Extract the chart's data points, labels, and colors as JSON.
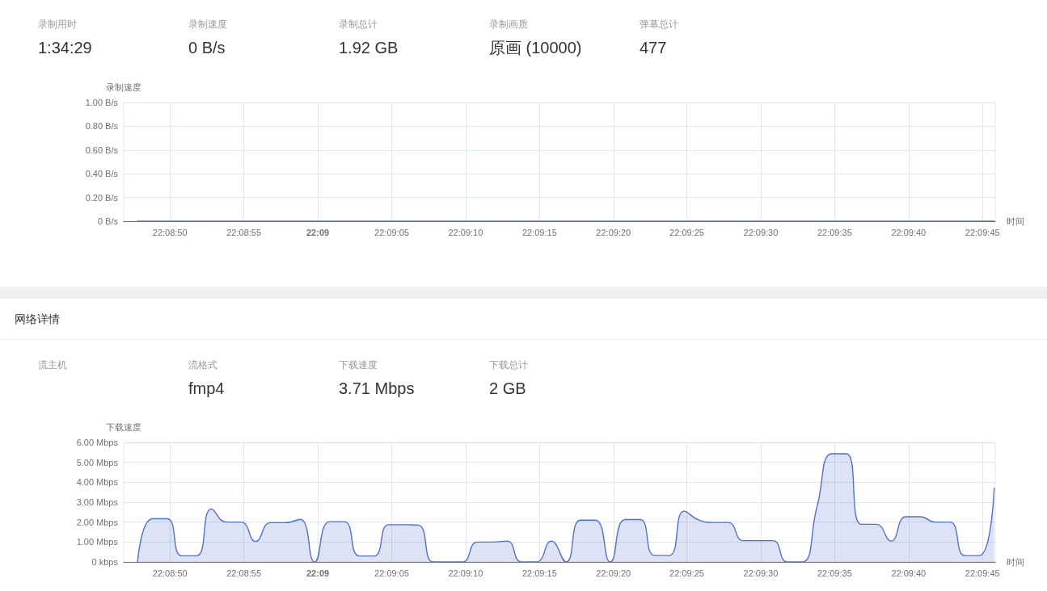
{
  "chart_data": [
    {
      "type": "other",
      "categories": [
        "录制用时",
        "录制速度",
        "录制总计",
        "录制画质",
        "弹幕总计"
      ],
      "value_labels": [
        "1:34:29",
        "0 B/s",
        "1.92 GB",
        "原画 (10000)",
        "477"
      ]
    },
    {
      "type": "line",
      "ylabel": "录制速度",
      "xlabel": "时间",
      "color": "#5470c6",
      "grid": true,
      "x": [
        22.14661,
        22.14689,
        22.14717,
        22.14744,
        22.14772,
        22.148,
        22.14828,
        22.14856,
        22.14883,
        22.14911,
        22.14939,
        22.14967,
        22.14994,
        22.15022,
        22.1505,
        22.15078,
        22.15106,
        22.15133,
        22.15161,
        22.15189,
        22.15217,
        22.15244,
        22.15272,
        22.153,
        22.15328,
        22.15356,
        22.15383,
        22.15411,
        22.15439,
        22.15467,
        22.15494,
        22.15522,
        22.1555,
        22.15578,
        22.15606,
        22.15633,
        22.15661,
        22.15689,
        22.15717,
        22.15744,
        22.15772,
        22.158,
        22.15828,
        22.15856,
        22.15883,
        22.15911,
        22.15939,
        22.15967,
        22.15994,
        22.16022,
        22.1605,
        22.16078,
        22.16106,
        22.16133,
        22.16161,
        22.16189,
        22.16217,
        22.16244,
        22.16272
      ],
      "values": [
        0,
        0,
        0,
        0,
        0,
        0,
        0,
        0,
        0,
        0,
        0,
        0,
        0,
        0,
        0,
        0,
        0,
        0,
        0,
        0,
        0,
        0,
        0,
        0,
        0,
        0,
        0,
        0,
        0,
        0,
        0,
        0,
        0,
        0,
        0,
        0,
        0,
        0,
        0,
        0,
        0,
        0,
        0,
        0,
        0,
        0,
        0,
        0,
        0,
        0,
        0,
        0,
        0,
        0,
        0,
        0,
        0,
        0,
        0
      ],
      "xlim": [
        22.14635,
        22.16274
      ],
      "xticks": [
        {
          "value": 22.14722,
          "label": "22:08:50"
        },
        {
          "value": 22.14861,
          "label": "22:08:55"
        },
        {
          "value": 22.15,
          "label": "22:09"
        },
        {
          "value": 22.15139,
          "label": "22:09:05"
        },
        {
          "value": 22.15278,
          "label": "22:09:10"
        },
        {
          "value": 22.15417,
          "label": "22:09:15"
        },
        {
          "value": 22.15556,
          "label": "22:09:20"
        },
        {
          "value": 22.15694,
          "label": "22:09:25"
        },
        {
          "value": 22.15833,
          "label": "22:09:30"
        },
        {
          "value": 22.15972,
          "label": "22:09:35"
        },
        {
          "value": 22.16111,
          "label": "22:09:40"
        },
        {
          "value": 22.1625,
          "label": "22:09:45"
        }
      ],
      "ylim": [
        0,
        1
      ],
      "yticks": [
        {
          "value": 0,
          "label": "0 B/s"
        },
        {
          "value": 0.2,
          "label": "0.20 B/s"
        },
        {
          "value": 0.4,
          "label": "0.40 B/s"
        },
        {
          "value": 0.6,
          "label": "0.60 B/s"
        },
        {
          "value": 0.8,
          "label": "0.80 B/s"
        },
        {
          "value": 1,
          "label": "1.00 B/s"
        }
      ]
    },
    {
      "type": "other",
      "title": "网络详情",
      "categories": [
        "流主机",
        "流格式",
        "下载速度",
        "下载总计"
      ],
      "value_labels": [
        null,
        "fmp4",
        "3.71 Mbps",
        "2 GB"
      ]
    },
    {
      "type": "area",
      "ylabel": "下载速度",
      "xlabel": "时间",
      "color": "#5470c6",
      "grid": true,
      "x": [
        22.14661,
        22.14689,
        22.14717,
        22.14744,
        22.14772,
        22.148,
        22.14828,
        22.14856,
        22.14883,
        22.14911,
        22.14939,
        22.14967,
        22.14994,
        22.15022,
        22.1505,
        22.15078,
        22.15106,
        22.15133,
        22.15161,
        22.15189,
        22.15217,
        22.15244,
        22.15272,
        22.153,
        22.15328,
        22.15356,
        22.15383,
        22.15411,
        22.15439,
        22.15467,
        22.15494,
        22.15522,
        22.1555,
        22.15578,
        22.15606,
        22.15633,
        22.15661,
        22.15689,
        22.15717,
        22.15744,
        22.15772,
        22.158,
        22.15828,
        22.15856,
        22.15883,
        22.15911,
        22.15939,
        22.15967,
        22.15994,
        22.16022,
        22.1605,
        22.16078,
        22.16106,
        22.16133,
        22.16161,
        22.16189,
        22.16217,
        22.16244,
        22.16272
      ],
      "values": [
        0,
        2.17,
        2.17,
        0.31,
        0.31,
        2.66,
        2.0,
        2.0,
        1.03,
        1.97,
        1.97,
        2.14,
        0,
        2.02,
        2.02,
        0.3,
        0.3,
        1.87,
        1.87,
        1.85,
        0,
        0,
        0,
        1.0,
        1.0,
        1.05,
        0,
        0,
        1.05,
        0,
        2.1,
        2.1,
        0,
        2.13,
        2.13,
        0.33,
        0.33,
        2.55,
        2.1,
        1.98,
        1.98,
        1.07,
        1.07,
        1.07,
        0,
        0,
        2.8,
        5.43,
        5.43,
        1.89,
        1.89,
        1.05,
        2.27,
        2.27,
        2.0,
        2.0,
        0.32,
        0.32,
        3.71
      ],
      "xlim": [
        22.14635,
        22.16274
      ],
      "xticks": [
        {
          "value": 22.14722,
          "label": "22:08:50"
        },
        {
          "value": 22.14861,
          "label": "22:08:55"
        },
        {
          "value": 22.15,
          "label": "22:09"
        },
        {
          "value": 22.15139,
          "label": "22:09:05"
        },
        {
          "value": 22.15278,
          "label": "22:09:10"
        },
        {
          "value": 22.15417,
          "label": "22:09:15"
        },
        {
          "value": 22.15556,
          "label": "22:09:20"
        },
        {
          "value": 22.15694,
          "label": "22:09:25"
        },
        {
          "value": 22.15833,
          "label": "22:09:30"
        },
        {
          "value": 22.15972,
          "label": "22:09:35"
        },
        {
          "value": 22.16111,
          "label": "22:09:40"
        },
        {
          "value": 22.1625,
          "label": "22:09:45"
        }
      ],
      "ylim": [
        0,
        6
      ],
      "yticks": [
        {
          "value": 0,
          "label": "0 kbps"
        },
        {
          "value": 1,
          "label": "1.00 Mbps"
        },
        {
          "value": 2,
          "label": "2.00 Mbps"
        },
        {
          "value": 3,
          "label": "3.00 Mbps"
        },
        {
          "value": 4,
          "label": "4.00 Mbps"
        },
        {
          "value": 5,
          "label": "5.00 Mbps"
        },
        {
          "value": 6,
          "label": "6.00 Mbps"
        }
      ]
    }
  ]
}
